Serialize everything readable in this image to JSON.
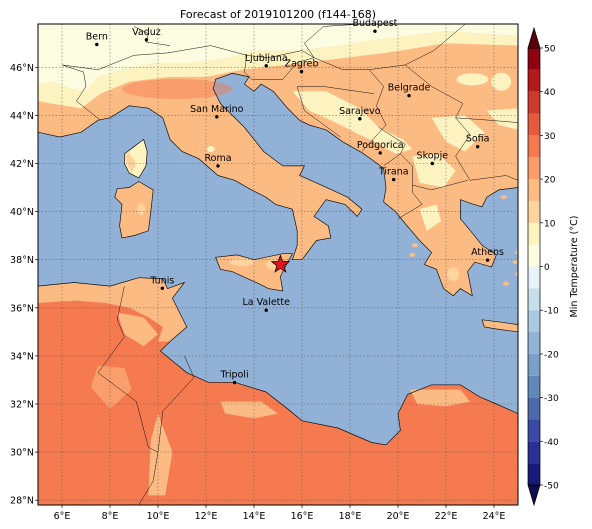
{
  "title": "Forecast of 2019101200 (f144-168)",
  "map": {
    "lon_range": [
      5,
      25
    ],
    "lat_range": [
      27.8,
      47.8
    ],
    "lon_ticks": [
      6,
      8,
      10,
      12,
      14,
      16,
      18,
      20,
      22,
      24
    ],
    "lat_ticks": [
      28,
      30,
      32,
      34,
      36,
      38,
      40,
      42,
      44,
      46
    ],
    "lon_tick_labels": [
      "6°E",
      "8°E",
      "10°E",
      "12°E",
      "14°E",
      "16°E",
      "18°E",
      "20°E",
      "22°E",
      "24°E"
    ],
    "lat_tick_labels": [
      "28°N",
      "30°N",
      "32°N",
      "34°N",
      "36°N",
      "38°N",
      "40°N",
      "42°N",
      "44°N",
      "46°N"
    ],
    "grid": true,
    "sea_color": "#92b1d6",
    "marker": {
      "name": "star",
      "lon": 15.1,
      "lat": 37.8,
      "color": "#e8141c"
    }
  },
  "cities": [
    {
      "name": "Bern",
      "lon": 7.45,
      "lat": 46.95
    },
    {
      "name": "Vaduz",
      "lon": 9.52,
      "lat": 47.14
    },
    {
      "name": "Budapest",
      "lon": 19.04,
      "lat": 47.5
    },
    {
      "name": "Ljubljana",
      "lon": 14.51,
      "lat": 46.06
    },
    {
      "name": "Zagreb",
      "lon": 15.98,
      "lat": 45.82
    },
    {
      "name": "Belgrade",
      "lon": 20.46,
      "lat": 44.82
    },
    {
      "name": "San Marino",
      "lon": 12.45,
      "lat": 43.94
    },
    {
      "name": "Sarajevo",
      "lon": 18.41,
      "lat": 43.86
    },
    {
      "name": "Sofia",
      "lon": 23.32,
      "lat": 42.7
    },
    {
      "name": "Roma",
      "lon": 12.5,
      "lat": 41.9
    },
    {
      "name": "Podgorica",
      "lon": 19.26,
      "lat": 42.44
    },
    {
      "name": "Skopje",
      "lon": 21.43,
      "lat": 42.0
    },
    {
      "name": "Tirana",
      "lon": 19.82,
      "lat": 41.33
    },
    {
      "name": "Athens",
      "lon": 23.73,
      "lat": 37.98
    },
    {
      "name": "Tunis",
      "lon": 10.18,
      "lat": 36.81
    },
    {
      "name": "La Valette",
      "lon": 14.51,
      "lat": 35.9
    },
    {
      "name": "Tripoli",
      "lon": 13.19,
      "lat": 32.89
    }
  ],
  "colorbar": {
    "label": "Min Temperature (°C)",
    "ticks": [
      -50,
      -40,
      -30,
      -20,
      -10,
      0,
      10,
      20,
      30,
      40,
      50
    ],
    "levels": [
      -50,
      -45,
      -40,
      -35,
      -30,
      -25,
      -20,
      -15,
      -10,
      -5,
      0,
      5,
      10,
      15,
      20,
      25,
      30,
      35,
      40,
      45,
      50
    ],
    "colors": [
      "#1a1a7a",
      "#2a2f96",
      "#3a4aa4",
      "#4e6aad",
      "#6089b8",
      "#7aa0c8",
      "#92b1d6",
      "#aac9e0",
      "#c6dfea",
      "#e8f4f8",
      "#fbfce0",
      "#fcf3c0",
      "#fdd49e",
      "#fdbb84",
      "#fc9c6c",
      "#f57a50",
      "#e45a3c",
      "#cc3a2c",
      "#b21a1c",
      "#8f0010"
    ],
    "under_color": "#0d0d50",
    "over_color": "#5c0008"
  }
}
